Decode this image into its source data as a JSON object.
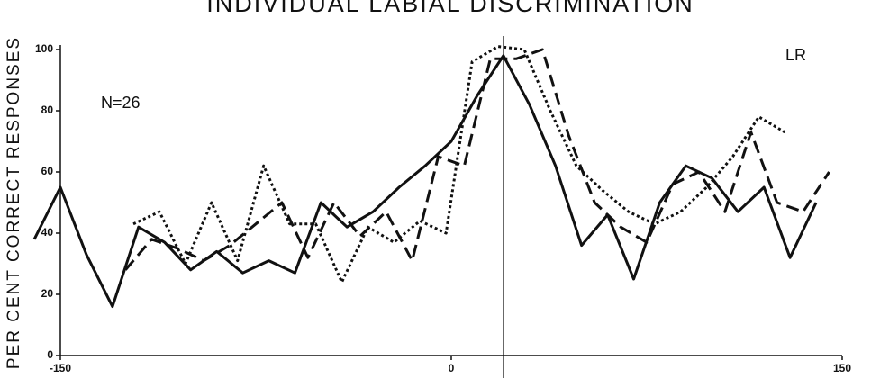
{
  "chart_data": {
    "type": "line",
    "title": "INDIVIDUAL LABIAL DISCRIMINATION",
    "y_label": "PER CENT CORRECT RESPONSES",
    "annotations": [
      "N=26",
      "LR"
    ],
    "vline": 20,
    "xlim": [
      -150,
      150
    ],
    "xticks": [
      -150,
      0,
      150
    ],
    "ylim": [
      0,
      100
    ],
    "yticks": [
      0,
      20,
      40,
      60,
      80,
      100
    ],
    "series": [
      {
        "color": "#111",
        "style": "solid",
        "x": [
          -160,
          -150,
          -140,
          -130,
          -120,
          -110,
          -100,
          -90,
          -80,
          -70,
          -60,
          -50,
          -40,
          -30,
          -20,
          -10,
          0,
          10,
          20,
          30,
          40,
          50,
          60,
          70,
          80,
          90,
          100,
          110,
          120,
          130,
          140
        ],
        "values": [
          38,
          55,
          33,
          16,
          42,
          37,
          28,
          34,
          27,
          31,
          27,
          50,
          42,
          47,
          55,
          62,
          70,
          85,
          98,
          82,
          62,
          36,
          46,
          25,
          50,
          62,
          58,
          47,
          55,
          32,
          50
        ]
      },
      {
        "color": "#111",
        "style": "dashed",
        "x": [
          -125,
          -115,
          -105,
          -95,
          -85,
          -75,
          -65,
          -55,
          -45,
          -35,
          -25,
          -15,
          -5,
          5,
          15,
          25,
          35,
          45,
          55,
          65,
          75,
          85,
          95,
          105,
          115,
          125,
          135,
          145
        ],
        "values": [
          28,
          38,
          35,
          31,
          36,
          43,
          50,
          32,
          50,
          39,
          47,
          31,
          65,
          62,
          97,
          97,
          100,
          72,
          50,
          42,
          37,
          56,
          60,
          47,
          73,
          50,
          47,
          60
        ]
      },
      {
        "color": "#111",
        "style": "dotted",
        "x": [
          -122,
          -112,
          -102,
          -92,
          -82,
          -72,
          -62,
          -52,
          -42,
          -32,
          -22,
          -12,
          -2,
          8,
          18,
          28,
          38,
          48,
          58,
          68,
          78,
          88,
          98,
          108,
          118,
          128
        ],
        "values": [
          43,
          47,
          30,
          50,
          31,
          62,
          43,
          43,
          24,
          42,
          37,
          44,
          40,
          96,
          101,
          100,
          80,
          62,
          54,
          47,
          43,
          47,
          55,
          65,
          78,
          73
        ]
      }
    ]
  }
}
